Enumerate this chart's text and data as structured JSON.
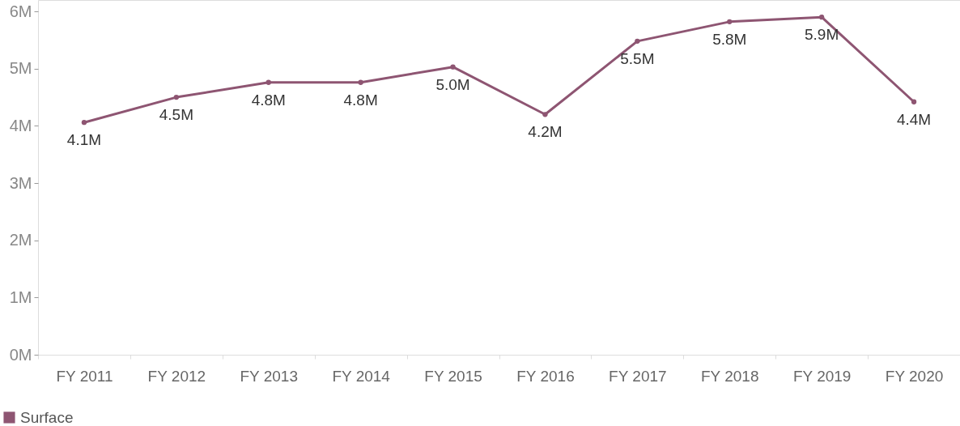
{
  "chart_data": {
    "type": "line",
    "categories": [
      "FY 2011",
      "FY 2012",
      "FY 2013",
      "FY 2014",
      "FY 2015",
      "FY 2016",
      "FY 2017",
      "FY 2018",
      "FY 2019",
      "FY 2020"
    ],
    "series": [
      {
        "name": "Surface",
        "color": "#8e5572",
        "values": [
          4.06,
          4.5,
          4.76,
          4.76,
          5.03,
          4.2,
          5.48,
          5.82,
          5.9,
          4.42
        ],
        "value_labels": [
          "4.1M",
          "4.5M",
          "4.8M",
          "4.8M",
          "5.0M",
          "4.2M",
          "5.5M",
          "5.8M",
          "5.9M",
          "4.4M"
        ]
      }
    ],
    "ylim": [
      0,
      6.2
    ],
    "yticks": [
      {
        "value": 0,
        "label": "0M"
      },
      {
        "value": 1,
        "label": "1M"
      },
      {
        "value": 2,
        "label": "2M"
      },
      {
        "value": 3,
        "label": "3M"
      },
      {
        "value": 4,
        "label": "4M"
      },
      {
        "value": 5,
        "label": "5M"
      },
      {
        "value": 6,
        "label": "6M"
      }
    ],
    "legend": "bottom left",
    "marker": "circle",
    "line_style": "solid"
  }
}
